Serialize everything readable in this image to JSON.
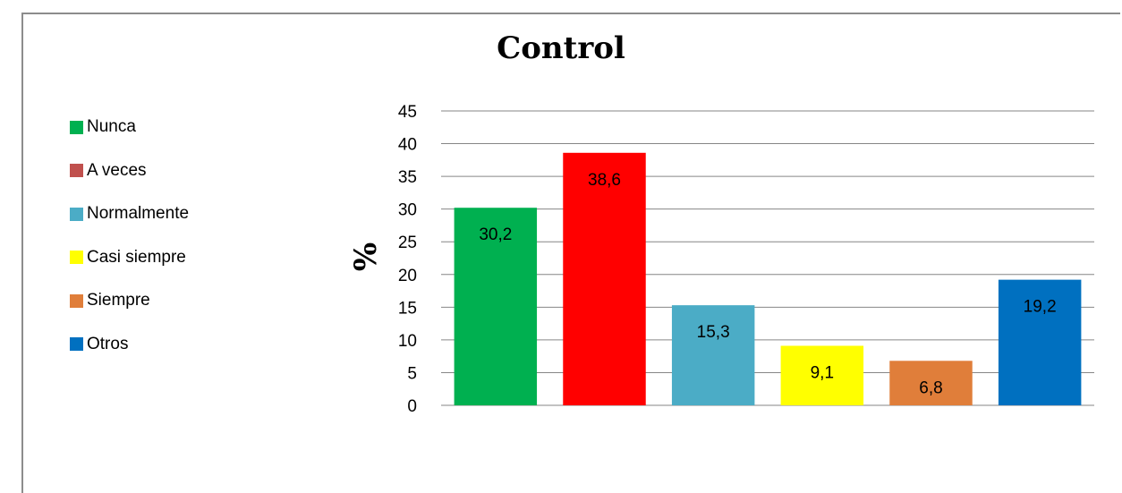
{
  "chart_data": {
    "type": "bar",
    "title": "Control",
    "ylabel": "%",
    "xlabel": "",
    "ylim": [
      0,
      45
    ],
    "yticks": [
      "0",
      "5",
      "10",
      "15",
      "20",
      "25",
      "30",
      "35",
      "40",
      "45"
    ],
    "categories": [
      "Nunca",
      "A veces",
      "Normalmente",
      "Casi siempre",
      "Siempre",
      "Otros"
    ],
    "values": [
      30.2,
      38.6,
      15.3,
      9.1,
      6.8,
      19.2
    ],
    "data_labels": [
      "30,2",
      "38,6",
      "15,3",
      "9,1",
      "6,8",
      "19,2"
    ],
    "colors": [
      "#00b050",
      "#ff0000",
      "#4bacc6",
      "#ffff00",
      "#e07e3a",
      "#0070c0"
    ],
    "legend_swatch_colors": [
      "#00b050",
      "#c0504d",
      "#4bacc6",
      "#ffff00",
      "#e07e3a",
      "#0070c0"
    ],
    "legend_position": "left",
    "grid": true
  }
}
